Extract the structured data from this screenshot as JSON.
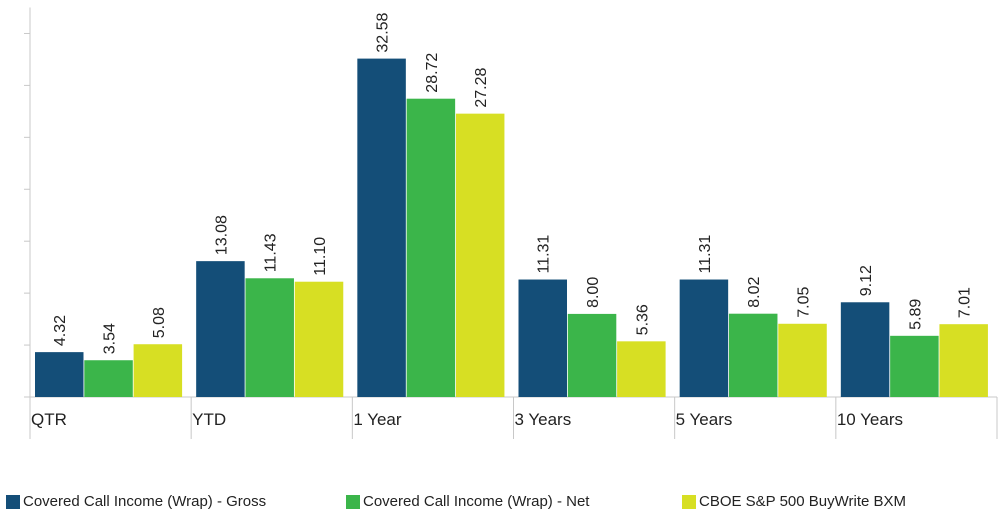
{
  "chart_data": {
    "type": "bar",
    "categories": [
      "QTR",
      "YTD",
      "1 Year",
      "3 Years",
      "5 Years",
      "10 Years"
    ],
    "series": [
      {
        "name": "Covered Call Income (Wrap) - Gross",
        "color": "#144e78",
        "values": [
          4.32,
          13.08,
          32.58,
          11.31,
          11.31,
          9.12
        ],
        "labels": [
          "4.32",
          "13.08",
          "32.58",
          "11.31",
          "11.31",
          "9.12"
        ]
      },
      {
        "name": "Covered Call Income (Wrap) - Net",
        "color": "#3bb54a",
        "values": [
          3.54,
          11.43,
          28.72,
          8.0,
          8.02,
          5.89
        ],
        "labels": [
          "3.54",
          "11.43",
          "28.72",
          "8.00",
          "8.02",
          "5.89"
        ]
      },
      {
        "name": "CBOE S&P 500 BuyWrite BXM",
        "color": "#d7df23",
        "values": [
          5.08,
          11.1,
          27.28,
          5.36,
          7.05,
          7.01
        ],
        "labels": [
          "5.08",
          "11.10",
          "27.28",
          "5.36",
          "7.05",
          "7.01"
        ]
      }
    ],
    "ylim": [
      0,
      37.5
    ],
    "grid": false,
    "legend_position": "bottom"
  }
}
